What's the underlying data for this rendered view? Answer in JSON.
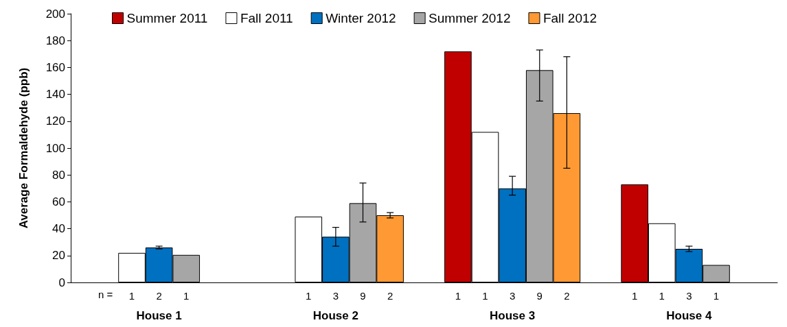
{
  "chart_data": {
    "type": "bar",
    "ylabel": "Average Formaldehyde (ppb)",
    "categories": [
      "House 1",
      "House 2",
      "House 3",
      "House 4"
    ],
    "series": [
      {
        "name": "Summer 2011",
        "color": "#c00000",
        "values": [
          null,
          null,
          172,
          73
        ]
      },
      {
        "name": "Fall 2011",
        "color": "#ffffff",
        "values": [
          22,
          49,
          112,
          44
        ]
      },
      {
        "name": "Winter 2012",
        "color": "#0070c0",
        "values": [
          26,
          34,
          70,
          25
        ],
        "errors": [
          [
            25,
            27
          ],
          [
            27,
            41
          ],
          [
            65,
            79
          ],
          [
            23,
            27
          ]
        ]
      },
      {
        "name": "Summer 2012",
        "color": "#a6a6a6",
        "values": [
          20.5,
          59,
          158,
          13
        ],
        "errors": [
          null,
          [
            45,
            74
          ],
          [
            135,
            173
          ],
          null
        ]
      },
      {
        "name": "Fall 2012",
        "color": "#ff9933",
        "values": [
          null,
          50,
          126,
          null
        ],
        "errors": [
          null,
          [
            48,
            52
          ],
          [
            85,
            168
          ],
          null
        ]
      }
    ],
    "ylim": [
      0,
      200
    ],
    "yticks": [
      0,
      20,
      40,
      60,
      80,
      100,
      120,
      140,
      160,
      180,
      200
    ],
    "grid": false,
    "legend": "top",
    "annotations": [
      "n =",
      "1",
      "2",
      "1",
      "1",
      "3",
      "9",
      "2",
      "1",
      "1",
      "3",
      "9",
      "2",
      "1",
      "1",
      "3",
      "1"
    ]
  }
}
